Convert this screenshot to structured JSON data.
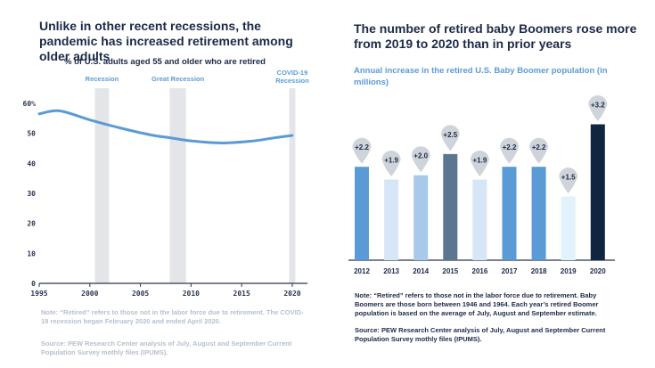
{
  "left_panel": {
    "title": "Unlike in other recent recessions, the pandemic has increased retirement among older adults",
    "note": "Note: “Retired” refers to those not in the labor force due to retirement. The COVID-19 recession began February 2020 and ended April 2020.",
    "source": "Source: PEW Research Center analysis of July, August and September Current Population Survey mothly files (IPUMS)."
  },
  "right_panel": {
    "title": "The number of retired baby Boomers rose more from 2019 to 2020 than in prior years",
    "note": "Note: “Retired” refers to those not in the labor force due to retirement. Baby Boomers are those born between 1946 and 1964. Each year’s retired Boomer population is based on the average of July, August and September estimate.",
    "source": "Source: PEW Research Center analysis of July, August and September Current Population Survey mothly files (IPUMS)."
  },
  "colors": {
    "line": "#5b9bd5",
    "band": "#e3e5e8",
    "axis": "#2a3550",
    "marker": "#cfd4da"
  },
  "chart_data": [
    {
      "type": "line",
      "title": "% of U.S. adults aged 55 and older who are retired",
      "x": [
        1995,
        1997,
        2000,
        2003,
        2006,
        2008,
        2010,
        2013,
        2016,
        2018,
        2020
      ],
      "values": [
        56.5,
        57.5,
        54.5,
        51.8,
        49.5,
        48.5,
        47.5,
        46.8,
        47.4,
        48.4,
        49.3
      ],
      "xlim": [
        1995,
        2021.5
      ],
      "ylim": [
        0,
        60
      ],
      "xticks": [
        1995,
        2000,
        2005,
        2010,
        2015,
        2020
      ],
      "xtick_labels": [
        "1995",
        "2000",
        "2005",
        "2010",
        "2015",
        "2020"
      ],
      "yticks": [
        0,
        10,
        20,
        30,
        40,
        50,
        60
      ],
      "ytick_labels": [
        "0",
        "10",
        "20",
        "30",
        "40",
        "50",
        "60%"
      ],
      "grid": false,
      "recession_bands": [
        {
          "label": "Recession",
          "start": 2000.5,
          "end": 2001.9
        },
        {
          "label": "Great Recession",
          "start": 2007.9,
          "end": 2009.5
        },
        {
          "label": "COVID-19 Recession",
          "start": 2019.7,
          "end": 2020.3
        }
      ]
    },
    {
      "type": "bar",
      "title": "Annual increase in the retired U.S. Baby Boomer population (in millions)",
      "categories": [
        "2012",
        "2013",
        "2014",
        "2015",
        "2016",
        "2017",
        "2018",
        "2019",
        "2020"
      ],
      "values": [
        2.2,
        1.9,
        2.0,
        2.5,
        1.9,
        2.2,
        2.2,
        1.5,
        3.2
      ],
      "labels": [
        "+2.2",
        "+1.9",
        "+2.0",
        "+2.5",
        "+1.9",
        "+2.2",
        "+2.2",
        "+1.5",
        "+3.2"
      ],
      "colors": [
        "#5b9bd5",
        "#d6e6f7",
        "#a8c9ea",
        "#5a7690",
        "#d6e6f7",
        "#5b9bd5",
        "#5b9bd5",
        "#e2f2fa",
        "#10253f"
      ],
      "ylim": [
        0,
        3.4
      ],
      "grid": false
    }
  ]
}
